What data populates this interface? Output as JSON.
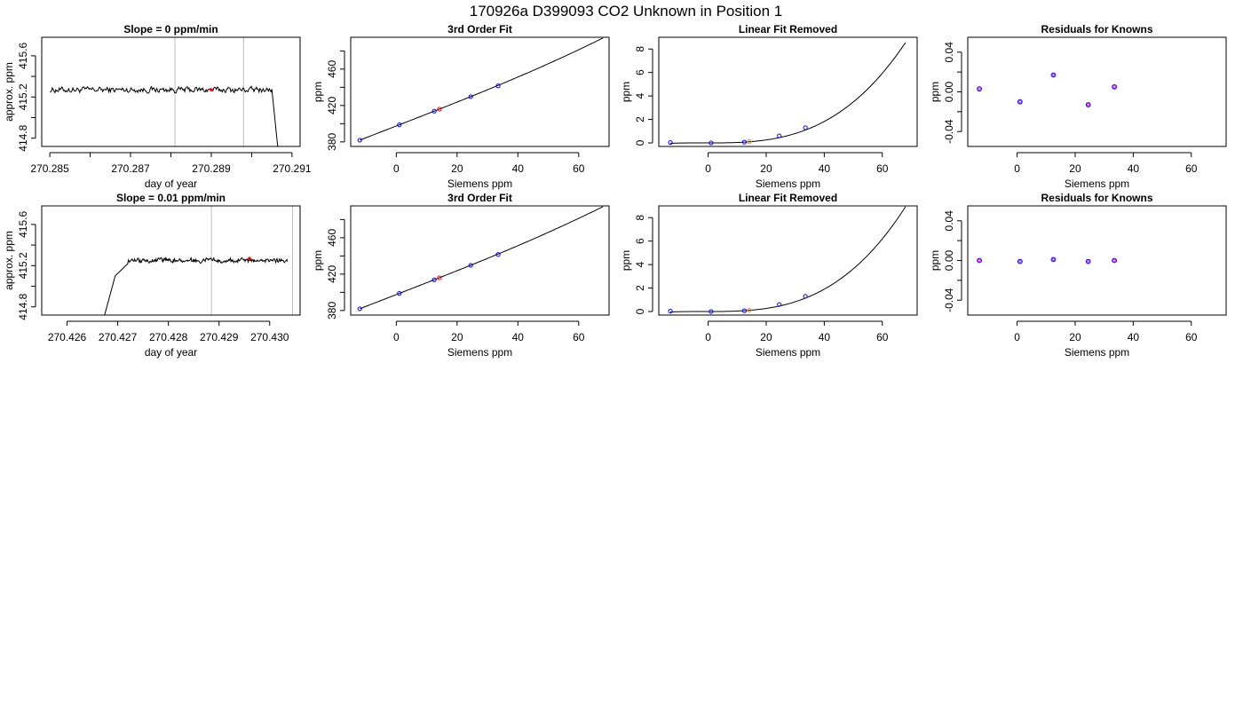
{
  "page_title": "170926a     D399093   CO2 Unknown in Position  1",
  "colors": {
    "line": "#000000",
    "frame": "#000000",
    "marker": "#0000ff",
    "highlight": "#ff0000",
    "unknown": "#ff8c00",
    "residual_outer": "#0000ff",
    "residual_inner": "#ff00ff",
    "vline": "#bebebe"
  },
  "chart_data": [
    {
      "type": "line",
      "row": 0,
      "col": 0,
      "title": "Slope =  0  ppm/min",
      "xlabel": "day of year",
      "ylabel": "approx. ppm",
      "xlim": [
        270.2848,
        270.2912
      ],
      "ylim": [
        414.72,
        415.78
      ],
      "xticks": [
        270.285,
        270.286,
        270.287,
        270.288,
        270.289,
        270.29,
        270.291
      ],
      "xtick_labels": [
        "270.285",
        "",
        "270.287",
        "",
        "270.289",
        "",
        "270.291"
      ],
      "yticks": [
        414.8,
        415.0,
        415.2,
        415.4,
        415.6
      ],
      "ytick_labels": [
        "414.8",
        "",
        "415.2",
        "",
        "415.6"
      ],
      "baseline": 415.27,
      "noise": 0.025,
      "x_start": 270.285,
      "x_end": 270.2906,
      "drop_from": 270.2905,
      "drop_x_end": 270.29065,
      "drop_to": 414.7,
      "vlines": [
        270.2881,
        270.2898
      ],
      "highlight": {
        "x": 270.289,
        "y": 415.27
      }
    },
    {
      "type": "scatter",
      "row": 0,
      "col": 1,
      "title": "3rd Order Fit",
      "xlabel": "Siemens ppm",
      "ylabel": "ppm",
      "xlim": [
        -15,
        70
      ],
      "ylim": [
        375,
        495
      ],
      "xticks": [
        0,
        20,
        40,
        60
      ],
      "xtick_labels": [
        "0",
        "20",
        "40",
        "60"
      ],
      "yticks": [
        380,
        400,
        420,
        440,
        460,
        480
      ],
      "ytick_labels": [
        "380",
        "",
        "420",
        "",
        "460",
        ""
      ],
      "curve_x": [
        -12,
        68
      ],
      "curve_coef": [
        397.52,
        1.3,
        0.0001,
        2.5e-05
      ],
      "points": [
        {
          "x": -12.0,
          "y": 381.9
        },
        {
          "x": 1.0,
          "y": 398.8
        },
        {
          "x": 12.5,
          "y": 413.8
        },
        {
          "x": 24.5,
          "y": 429.7
        },
        {
          "x": 33.5,
          "y": 441.6
        }
      ],
      "unknown_point": {
        "x": 14.2,
        "y": 416.0
      }
    },
    {
      "type": "scatter",
      "row": 0,
      "col": 2,
      "title": "Linear Fit Removed",
      "xlabel": "Siemens ppm",
      "ylabel": "ppm",
      "xlim": [
        -17,
        72
      ],
      "ylim": [
        -0.3,
        9.0
      ],
      "xticks": [
        0,
        20,
        40,
        60
      ],
      "xtick_labels": [
        "0",
        "20",
        "40",
        "60"
      ],
      "yticks": [
        0,
        2,
        4,
        6,
        8
      ],
      "ytick_labels": [
        "0",
        "2",
        "4",
        "6",
        "8"
      ],
      "curve_x": [
        -13,
        68
      ],
      "curve_coef": [
        0.0,
        0.0,
        0.00013,
        2.53e-05
      ],
      "points": [
        {
          "x": -13.0,
          "y": 0.03
        },
        {
          "x": 1.0,
          "y": 0.0
        },
        {
          "x": 12.5,
          "y": 0.07
        },
        {
          "x": 24.5,
          "y": 0.6
        },
        {
          "x": 33.5,
          "y": 1.3
        }
      ],
      "unknown_point": {
        "x": 14.2,
        "y": 0.12
      }
    },
    {
      "type": "scatter",
      "row": 0,
      "col": 3,
      "title": "Residuals for Knowns",
      "xlabel": "Siemens ppm",
      "ylabel": "ppm",
      "xlim": [
        -17,
        72
      ],
      "ylim": [
        -0.055,
        0.055
      ],
      "xticks": [
        0,
        20,
        40,
        60
      ],
      "xtick_labels": [
        "0",
        "20",
        "40",
        "60"
      ],
      "yticks": [
        -0.04,
        -0.02,
        0.0,
        0.02,
        0.04
      ],
      "ytick_labels": [
        "-0.04",
        "",
        "0.00",
        "",
        "0.04"
      ],
      "points": [
        {
          "x": -13.0,
          "y": 0.003
        },
        {
          "x": 1.0,
          "y": -0.01
        },
        {
          "x": 12.5,
          "y": 0.017
        },
        {
          "x": 24.5,
          "y": -0.013
        },
        {
          "x": 33.5,
          "y": 0.005
        }
      ]
    },
    {
      "type": "line",
      "row": 1,
      "col": 0,
      "title": "Slope =  0.01  ppm/min",
      "xlabel": "day of year",
      "ylabel": "approx. ppm",
      "xlim": [
        270.4255,
        270.4306
      ],
      "ylim": [
        414.72,
        415.78
      ],
      "xticks": [
        270.426,
        270.427,
        270.428,
        270.429,
        270.43
      ],
      "xtick_labels": [
        "270.426",
        "270.427",
        "270.428",
        "270.429",
        "270.430"
      ],
      "yticks": [
        414.8,
        415.0,
        415.2,
        415.4,
        415.6
      ],
      "ytick_labels": [
        "414.8",
        "",
        "415.2",
        "",
        "415.6"
      ],
      "baseline": 415.25,
      "noise": 0.02,
      "x_start": 270.42673,
      "x_end": 270.43035,
      "rise_start": 270.42673,
      "rise_mid": 270.42695,
      "rise_end": 270.4272,
      "rise_from": 414.7,
      "rise_mid_value": 415.1,
      "vlines": [
        270.42885,
        270.43045
      ],
      "highlight": {
        "x": 270.4296,
        "y": 415.27
      }
    },
    {
      "type": "scatter",
      "row": 1,
      "col": 1,
      "title": "3rd Order Fit",
      "xlabel": "Siemens ppm",
      "ylabel": "ppm",
      "xlim": [
        -15,
        70
      ],
      "ylim": [
        375,
        495
      ],
      "xticks": [
        0,
        20,
        40,
        60
      ],
      "xtick_labels": [
        "0",
        "20",
        "40",
        "60"
      ],
      "yticks": [
        380,
        400,
        420,
        440,
        460,
        480
      ],
      "ytick_labels": [
        "380",
        "",
        "420",
        "",
        "460",
        ""
      ],
      "curve_x": [
        -12,
        68
      ],
      "curve_coef": [
        397.52,
        1.3,
        0.0001,
        2.5e-05
      ],
      "points": [
        {
          "x": -12.0,
          "y": 381.9
        },
        {
          "x": 1.0,
          "y": 398.8
        },
        {
          "x": 12.5,
          "y": 413.8
        },
        {
          "x": 24.5,
          "y": 429.7
        },
        {
          "x": 33.5,
          "y": 441.6
        }
      ],
      "unknown_point": {
        "x": 14.2,
        "y": 416.0
      }
    },
    {
      "type": "scatter",
      "row": 1,
      "col": 2,
      "title": "Linear Fit Removed",
      "xlabel": "Siemens ppm",
      "ylabel": "ppm",
      "xlim": [
        -17,
        72
      ],
      "ylim": [
        -0.3,
        9.0
      ],
      "xticks": [
        0,
        20,
        40,
        60
      ],
      "xtick_labels": [
        "0",
        "20",
        "40",
        "60"
      ],
      "yticks": [
        0,
        2,
        4,
        6,
        8
      ],
      "ytick_labels": [
        "0",
        "2",
        "4",
        "6",
        "8"
      ],
      "curve_x": [
        -13,
        68
      ],
      "curve_coef": [
        0.0,
        0.0,
        0.00013,
        2.65e-05
      ],
      "points": [
        {
          "x": -13.0,
          "y": 0.03
        },
        {
          "x": 1.0,
          "y": 0.0
        },
        {
          "x": 12.5,
          "y": 0.07
        },
        {
          "x": 24.5,
          "y": 0.6
        },
        {
          "x": 33.5,
          "y": 1.3
        }
      ],
      "unknown_point": {
        "x": 14.2,
        "y": 0.12
      }
    },
    {
      "type": "scatter",
      "row": 1,
      "col": 3,
      "title": "Residuals for Knowns",
      "xlabel": "Siemens ppm",
      "ylabel": "ppm",
      "xlim": [
        -17,
        72
      ],
      "ylim": [
        -0.055,
        0.055
      ],
      "xticks": [
        0,
        20,
        40,
        60
      ],
      "xtick_labels": [
        "0",
        "20",
        "40",
        "60"
      ],
      "yticks": [
        -0.04,
        -0.02,
        0.0,
        0.02,
        0.04
      ],
      "ytick_labels": [
        "-0.04",
        "",
        "0.00",
        "",
        "0.04"
      ],
      "points": [
        {
          "x": -13.0,
          "y": 0.0
        },
        {
          "x": 1.0,
          "y": -0.001
        },
        {
          "x": 12.5,
          "y": 0.001
        },
        {
          "x": 24.5,
          "y": -0.001
        },
        {
          "x": 33.5,
          "y": 0.0
        }
      ]
    }
  ]
}
